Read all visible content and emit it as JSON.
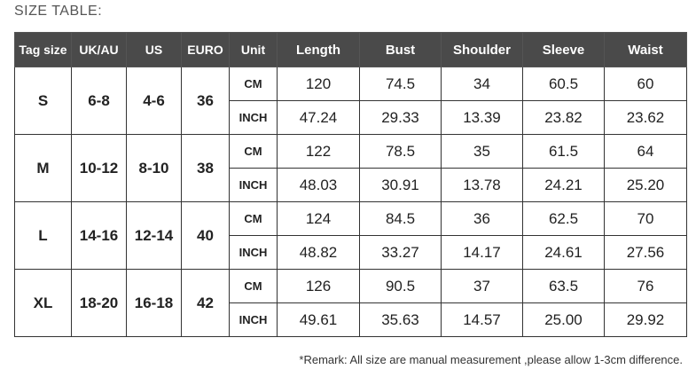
{
  "title": "SIZE TABLE:",
  "headers": [
    "Tag size",
    "UK/AU",
    "US",
    "EURO",
    "Unit",
    "Length",
    "Bust",
    "Shoulder",
    "Sleeve",
    "Waist"
  ],
  "rows": [
    {
      "tag": "S",
      "uk": "6-8",
      "us": "4-6",
      "euro": "36",
      "cm": {
        "unit": "CM",
        "values": [
          "120",
          "74.5",
          "34",
          "60.5",
          "60"
        ]
      },
      "inch": {
        "unit": "INCH",
        "values": [
          "47.24",
          "29.33",
          "13.39",
          "23.82",
          "23.62"
        ]
      }
    },
    {
      "tag": "M",
      "uk": "10-12",
      "us": "8-10",
      "euro": "38",
      "cm": {
        "unit": "CM",
        "values": [
          "122",
          "78.5",
          "35",
          "61.5",
          "64"
        ]
      },
      "inch": {
        "unit": "INCH",
        "values": [
          "48.03",
          "30.91",
          "13.78",
          "24.21",
          "25.20"
        ]
      }
    },
    {
      "tag": "L",
      "uk": "14-16",
      "us": "12-14",
      "euro": "40",
      "cm": {
        "unit": "CM",
        "values": [
          "124",
          "84.5",
          "36",
          "62.5",
          "70"
        ]
      },
      "inch": {
        "unit": "INCH",
        "values": [
          "48.82",
          "33.27",
          "14.17",
          "24.61",
          "27.56"
        ]
      }
    },
    {
      "tag": "XL",
      "uk": "18-20",
      "us": "16-18",
      "euro": "42",
      "cm": {
        "unit": "CM",
        "values": [
          "126",
          "90.5",
          "37",
          "63.5",
          "76"
        ]
      },
      "inch": {
        "unit": "INCH",
        "values": [
          "49.61",
          "35.63",
          "14.57",
          "25.00",
          "29.92"
        ]
      }
    }
  ],
  "remark": "*Remark: All size are manual measurement ,please allow 1-3cm difference.",
  "colors": {
    "header_bg": "#4a4a4a",
    "header_text": "#ffffff",
    "border": "#333333"
  }
}
